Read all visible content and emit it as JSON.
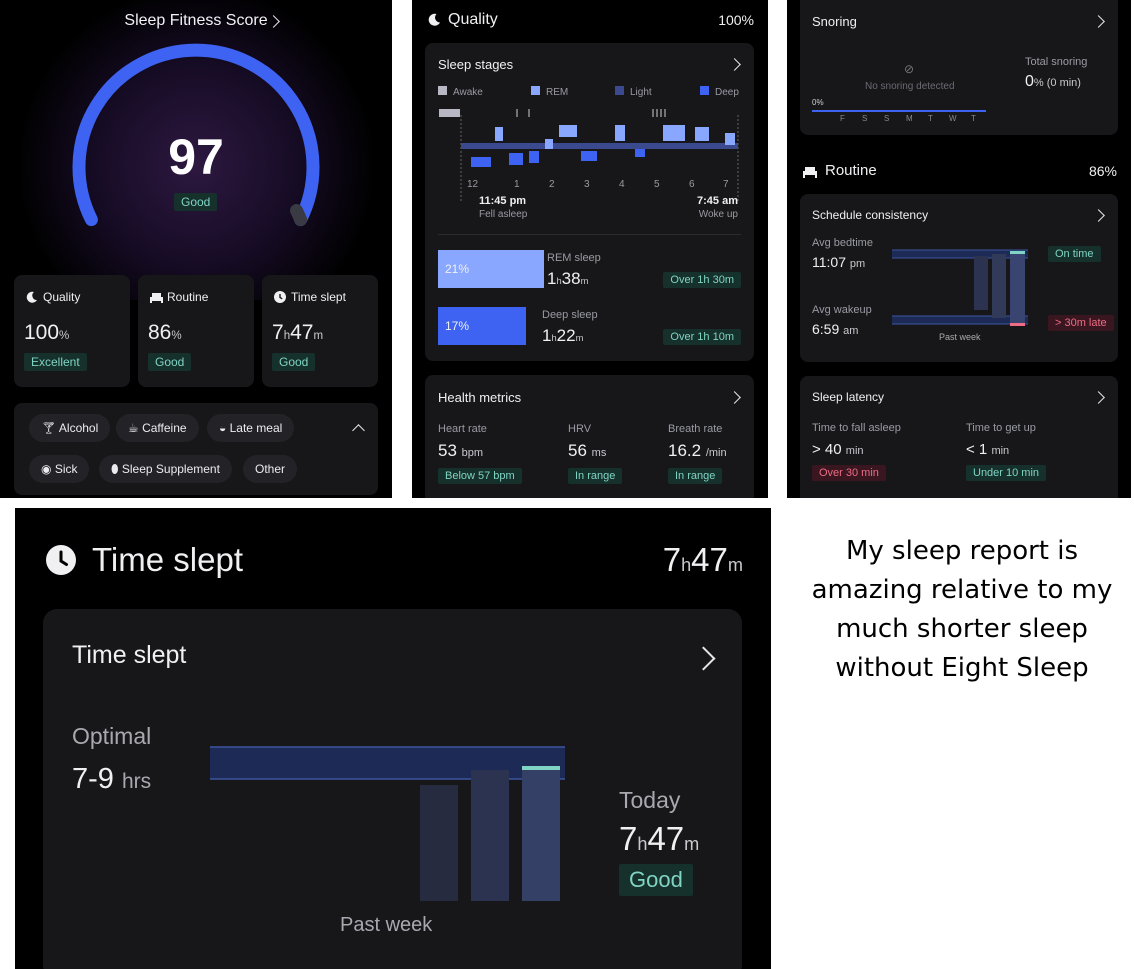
{
  "panel1": {
    "score_title": "Sleep Fitness Score",
    "score": "97",
    "score_label": "Good",
    "cards": [
      {
        "title": "Quality",
        "icon": "moon-icon",
        "value": "100",
        "unit": "%",
        "badge": "Excellent"
      },
      {
        "title": "Routine",
        "icon": "bed-icon",
        "value": "86",
        "unit": "%",
        "badge": "Good"
      },
      {
        "title": "Time slept",
        "icon": "clock-icon",
        "h": "7",
        "hu": "h",
        "m": "47",
        "mu": "m",
        "badge": "Good"
      }
    ],
    "tags": [
      "Alcohol",
      "Caffeine",
      "Late meal",
      "Sick",
      "Sleep Supplement",
      "Other"
    ]
  },
  "panel2": {
    "header": "Quality",
    "header_value": "100%",
    "stages_title": "Sleep stages",
    "legend": [
      "Awake",
      "REM",
      "Light",
      "Deep"
    ],
    "hours": [
      "12",
      "1",
      "2",
      "3",
      "4",
      "5",
      "6",
      "7"
    ],
    "fell_asleep_time": "11:45 pm",
    "fell_asleep_label": "Fell asleep",
    "woke_time": "7:45 am",
    "woke_label": "Woke up",
    "rem": {
      "pct": "21%",
      "fill": 0.21,
      "label": "REM sleep",
      "h": "1",
      "hu": "h",
      "m": "38",
      "mu": "m",
      "badge": "Over 1h 30m"
    },
    "deep": {
      "pct": "17%",
      "fill": 0.17,
      "label": "Deep sleep",
      "h": "1",
      "hu": "h",
      "m": "22",
      "mu": "m",
      "badge": "Over 1h 10m"
    },
    "health_title": "Health metrics",
    "metrics": [
      {
        "label": "Heart rate",
        "value": "53",
        "unit": "bpm",
        "badge": "Below 57 bpm"
      },
      {
        "label": "HRV",
        "value": "56",
        "unit": "ms",
        "badge": "In range"
      },
      {
        "label": "Breath rate",
        "value": "16.2",
        "unit": "/min",
        "badge": "In range"
      }
    ]
  },
  "panel3": {
    "snoring_title": "Snoring",
    "no_snoring": "No snoring detected",
    "snore_pct": "0%",
    "days": [
      "F",
      "S",
      "S",
      "M",
      "T",
      "W",
      "T"
    ],
    "total_snoring_label": "Total snoring",
    "total_snoring_value": "0",
    "total_snoring_unit": "% (0 min)",
    "routine_title": "Routine",
    "routine_value": "86%",
    "schedule_title": "Schedule consistency",
    "avg_bedtime_label": "Avg bedtime",
    "avg_bedtime": "11:07",
    "avg_bedtime_unit": "pm",
    "bedtime_badge": "On time",
    "avg_wakeup_label": "Avg wakeup",
    "avg_wakeup": "6:59",
    "avg_wakeup_unit": "am",
    "wakeup_badge": "> 30m late",
    "past_week": "Past week",
    "latency_title": "Sleep latency",
    "fall_label": "Time to fall asleep",
    "fall_value": "> 40",
    "fall_unit": "min",
    "fall_badge": "Over 30 min",
    "getup_label": "Time to get up",
    "getup_value": "< 1",
    "getup_unit": "min",
    "getup_badge": "Under 10 min"
  },
  "panel4": {
    "header": "Time slept",
    "h": "7",
    "hu": "h",
    "m": "47",
    "mu": "m",
    "card_title": "Time slept",
    "optimal_label": "Optimal",
    "optimal_value": "7-9",
    "optimal_unit": "hrs",
    "today_label": "Today",
    "badge": "Good",
    "past_week": "Past week"
  },
  "caption": "My sleep report is amazing relative to my much shorter sleep without Eight Sleep",
  "colors": {
    "accent_blue": "#3e63f2",
    "good_green": "#7fd4c4",
    "late_red": "#ee6c84"
  }
}
